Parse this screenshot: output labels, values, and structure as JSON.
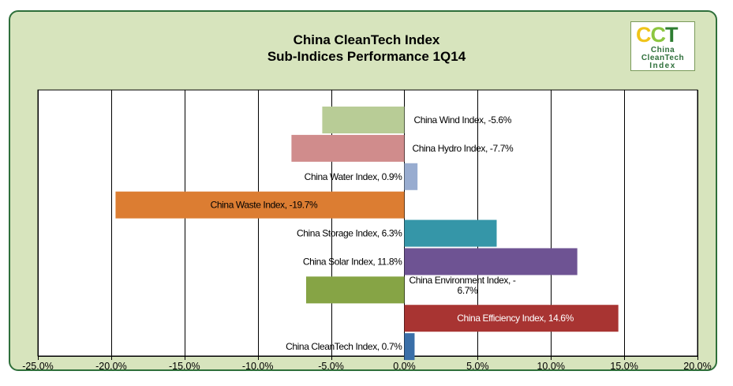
{
  "chart_data": {
    "type": "bar",
    "orientation": "horizontal",
    "title": "China CleanTech Index",
    "subtitle": "Sub-Indices Performance 1Q14",
    "xlim": [
      -25,
      20
    ],
    "xticks": [
      -25,
      -20,
      -15,
      -10,
      -5,
      0,
      5,
      10,
      15,
      20
    ],
    "xtick_labels": [
      "-25.0%",
      "-20.0%",
      "-15.0%",
      "-10.0%",
      "-5.0%",
      "0.0%",
      "5.0%",
      "10.0%",
      "15.0%",
      "20.0%"
    ],
    "grid": "vertical",
    "legend": "none",
    "categories": [
      "China Wind Index",
      "China Hydro Index",
      "China Water Index",
      "China Waste Index",
      "China Storage Index",
      "China Solar Index",
      "China Environment Index",
      "China Efficiency Index",
      "China CleanTech Index"
    ],
    "values": [
      -5.6,
      -7.7,
      0.9,
      -19.7,
      6.3,
      11.8,
      -6.7,
      14.6,
      0.7
    ],
    "data_labels": [
      [
        "China Wind Index, -5.6%"
      ],
      [
        "China Hydro Index, -7.7%"
      ],
      [
        "China Water Index, 0.9%"
      ],
      [
        "China Waste Index, -19.7%"
      ],
      [
        "China Storage Index, 6.3%"
      ],
      [
        "China Solar Index, 11.8%"
      ],
      [
        "China Environment Index, -",
        "6.7%"
      ],
      [
        "China Efficiency Index, 14.6%"
      ],
      [
        "China CleanTech Index, 0.7%"
      ]
    ],
    "colors": [
      "#b8cc96",
      "#d08c8c",
      "#98acd0",
      "#dc7d32",
      "#3596a8",
      "#6e5393",
      "#86a445",
      "#a83432",
      "#3a6fa8"
    ]
  },
  "logo": {
    "mark": [
      "C",
      "C",
      "T"
    ],
    "lines": [
      "China",
      "CleanTech",
      "Index"
    ]
  }
}
